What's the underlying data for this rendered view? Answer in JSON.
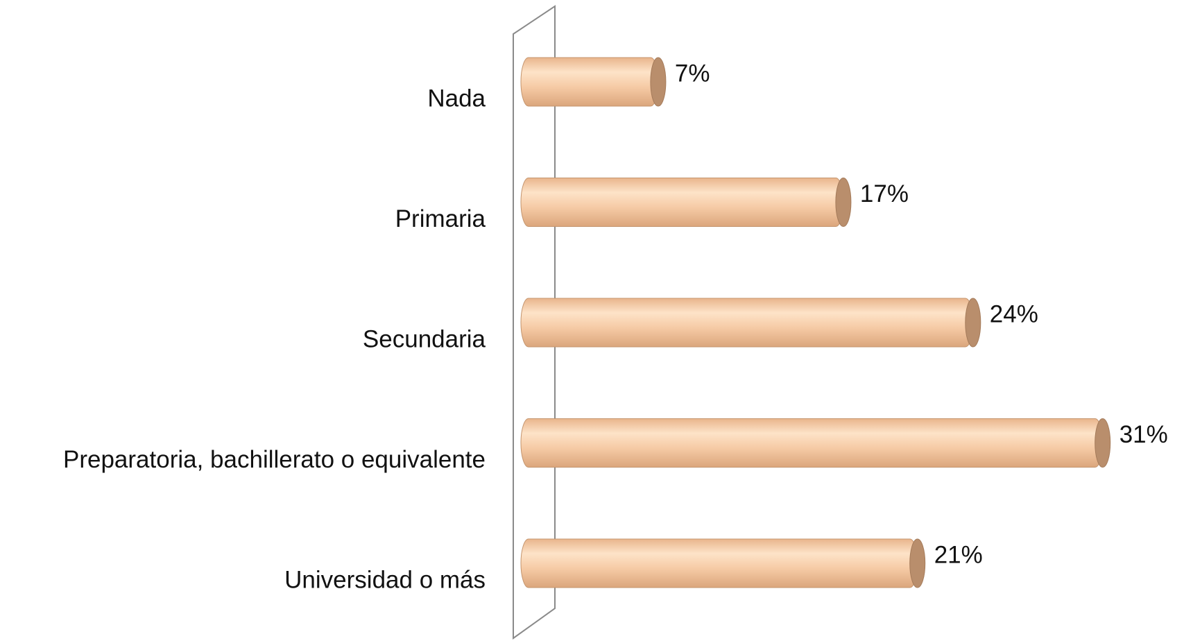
{
  "chart_data": {
    "type": "bar",
    "orientation": "horizontal",
    "categories": [
      "Nada",
      "Primaria",
      "Secundaria",
      "Preparatoria, bachillerato o equivalente",
      "Universidad o más"
    ],
    "values": [
      7,
      17,
      24,
      31,
      21
    ],
    "value_labels": [
      "7%",
      "17%",
      "24%",
      "31%",
      "21%"
    ],
    "color": "#f2c39c"
  }
}
